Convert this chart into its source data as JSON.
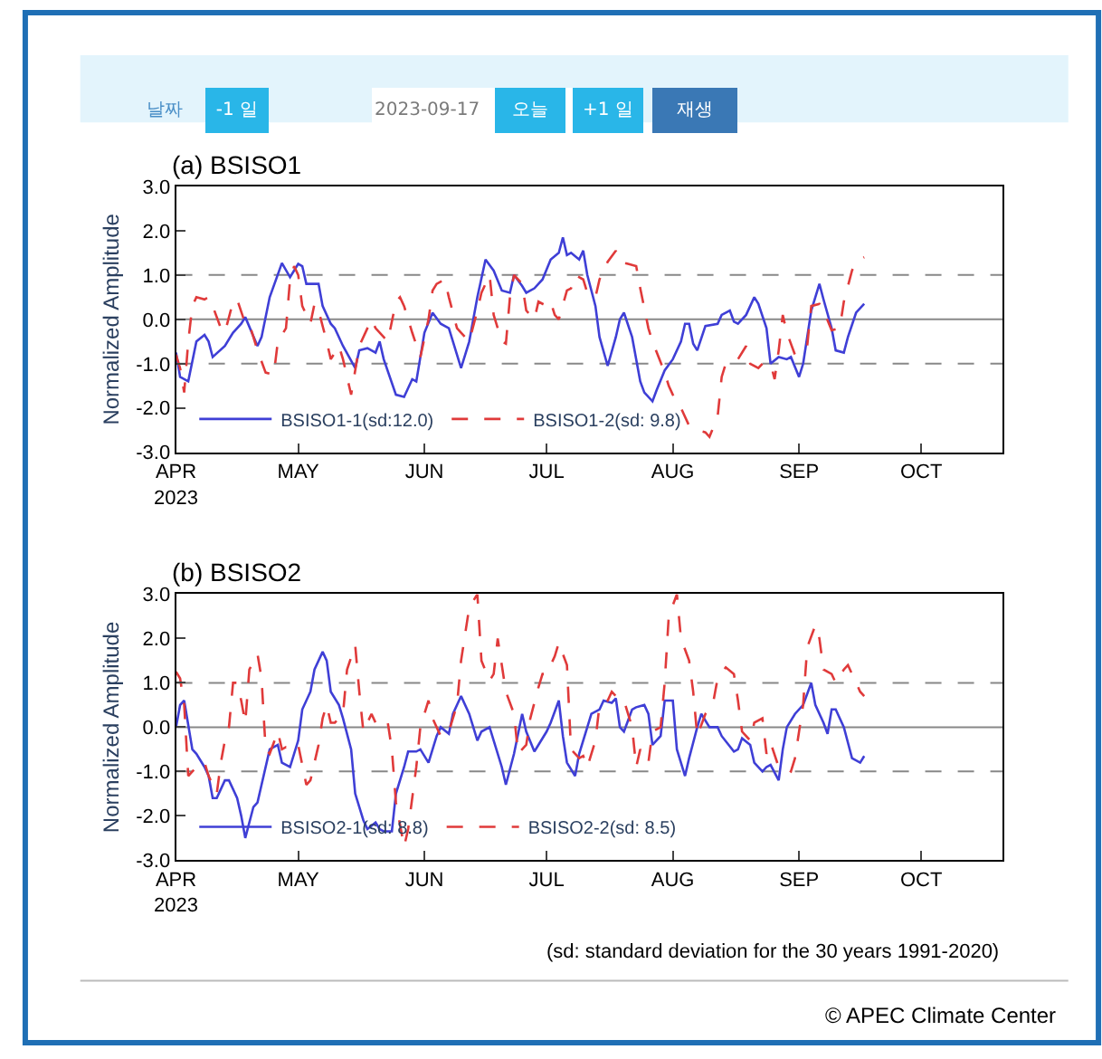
{
  "chart_data": [
    {
      "type": "other",
      "annotations": [
        "날짜",
        "-1 일",
        "2023-09-17",
        "오늘",
        "+1 일",
        "재생"
      ]
    },
    {
      "type": "line",
      "title": "(a) BSISO1",
      "ylabel": "Normalized Amplitude",
      "legend": "bottom left",
      "xlim": [
        "2023-04-01",
        "2023-10-21"
      ],
      "xticks": [
        {
          "value": "2023-04-01",
          "label": "APR\n2023"
        },
        {
          "value": "2023-05-01",
          "label": "MAY"
        },
        {
          "value": "2023-06-01",
          "label": "JUN"
        },
        {
          "value": "2023-07-01",
          "label": "JUL"
        },
        {
          "value": "2023-08-01",
          "label": "AUG"
        },
        {
          "value": "2023-09-01",
          "label": "SEP"
        },
        {
          "value": "2023-10-01",
          "label": "OCT"
        }
      ],
      "ylim": [
        -3,
        3
      ],
      "yticks": [
        {
          "value": -3,
          "label": "-3.0"
        },
        {
          "value": -2,
          "label": "-2.0"
        },
        {
          "value": -1,
          "label": "-1.0"
        },
        {
          "value": 0,
          "label": "0.0"
        },
        {
          "value": 1,
          "label": "1.0"
        },
        {
          "value": 2,
          "label": "2.0"
        },
        {
          "value": 3,
          "label": "3.0"
        }
      ],
      "ref_lines": [
        {
          "axis": "y",
          "value": 1,
          "color": "#888888",
          "line_style": "dashed"
        },
        {
          "axis": "y",
          "value": 0,
          "color": "#888888",
          "line_style": "solid"
        },
        {
          "axis": "y",
          "value": -1,
          "color": "#888888",
          "line_style": "dashed"
        }
      ],
      "series": [
        {
          "name": "BSISO1-1(sd:12.0)",
          "color": "#3f3fd6",
          "line_style": "solid",
          "x": [
            "2023-04-01",
            "2023-04-02",
            "2023-04-04",
            "2023-04-06",
            "2023-04-08",
            "2023-04-09",
            "2023-04-10",
            "2023-04-13",
            "2023-04-15",
            "2023-04-17",
            "2023-04-18",
            "2023-04-21",
            "2023-04-22",
            "2023-04-24",
            "2023-04-27",
            "2023-04-29",
            "2023-05-01",
            "2023-05-02",
            "2023-05-03",
            "2023-05-05",
            "2023-05-06",
            "2023-05-07",
            "2023-05-09",
            "2023-05-10",
            "2023-05-12",
            "2023-05-15",
            "2023-05-16",
            "2023-05-18",
            "2023-05-20",
            "2023-05-21",
            "2023-05-22",
            "2023-05-25",
            "2023-05-27",
            "2023-05-29",
            "2023-05-30",
            "2023-06-01",
            "2023-06-03",
            "2023-06-05",
            "2023-06-07",
            "2023-06-10",
            "2023-06-12",
            "2023-06-14",
            "2023-06-16",
            "2023-06-18",
            "2023-06-20",
            "2023-06-22",
            "2023-06-23",
            "2023-06-25",
            "2023-06-26",
            "2023-06-28",
            "2023-06-30",
            "2023-07-02",
            "2023-07-04",
            "2023-07-05",
            "2023-07-06",
            "2023-07-07",
            "2023-07-09",
            "2023-07-10",
            "2023-07-11",
            "2023-07-13",
            "2023-07-14",
            "2023-07-16",
            "2023-07-18",
            "2023-07-19",
            "2023-07-20",
            "2023-07-22",
            "2023-07-24",
            "2023-07-25",
            "2023-07-27",
            "2023-07-28",
            "2023-07-30",
            "2023-08-01",
            "2023-08-03",
            "2023-08-04",
            "2023-08-05",
            "2023-08-06",
            "2023-08-07",
            "2023-08-09",
            "2023-08-12",
            "2023-08-13",
            "2023-08-15",
            "2023-08-16",
            "2023-08-17",
            "2023-08-19",
            "2023-08-21",
            "2023-08-22",
            "2023-08-24",
            "2023-08-25",
            "2023-08-27",
            "2023-08-29",
            "2023-08-30",
            "2023-09-01",
            "2023-09-02",
            "2023-09-04",
            "2023-09-06",
            "2023-09-07",
            "2023-09-09",
            "2023-09-10",
            "2023-09-12",
            "2023-09-13",
            "2023-09-15",
            "2023-09-17"
          ],
          "values": [
            -0.75,
            -1.3,
            -1.4,
            -0.5,
            -0.35,
            -0.5,
            -0.85,
            -0.6,
            -0.3,
            -0.1,
            0.05,
            -0.6,
            -0.4,
            0.5,
            1.27,
            0.95,
            1.25,
            1.2,
            0.8,
            0.8,
            0.8,
            0.3,
            -0.1,
            -0.2,
            -0.6,
            -1.1,
            -0.7,
            -0.65,
            -0.75,
            -0.5,
            -0.9,
            -1.7,
            -1.75,
            -1.35,
            -1.4,
            -0.3,
            0.15,
            -0.1,
            -0.2,
            -1.1,
            -0.5,
            0.5,
            1.35,
            1.1,
            0.65,
            0.6,
            1.0,
            0.75,
            0.6,
            0.7,
            0.9,
            1.35,
            1.5,
            1.85,
            1.45,
            1.5,
            1.35,
            1.55,
            1.0,
            0.3,
            -0.4,
            -1.05,
            -0.4,
            0.0,
            0.15,
            -0.4,
            -1.4,
            -1.65,
            -1.85,
            -1.6,
            -1.15,
            -0.9,
            -0.5,
            -0.1,
            -0.1,
            -0.55,
            -0.7,
            -0.15,
            -0.1,
            0.1,
            0.2,
            -0.05,
            -0.1,
            0.1,
            0.5,
            0.35,
            -0.2,
            -1.0,
            -0.85,
            -0.9,
            -0.85,
            -1.3,
            -1.0,
            0.2,
            0.8,
            0.45,
            -0.2,
            -0.7,
            -0.75,
            -0.4,
            0.15,
            0.35
          ]
        },
        {
          "name": "BSISO1-2(sd: 9.8)",
          "color": "#e03a3a",
          "line_style": "dashed",
          "x": [
            "2023-04-01",
            "2023-04-02",
            "2023-04-03",
            "2023-04-04",
            "2023-04-05",
            "2023-04-06",
            "2023-04-08",
            "2023-04-09",
            "2023-04-10",
            "2023-04-12",
            "2023-04-13",
            "2023-04-15",
            "2023-04-16",
            "2023-04-18",
            "2023-04-19",
            "2023-04-21",
            "2023-04-23",
            "2023-04-25",
            "2023-04-26",
            "2023-04-28",
            "2023-04-29",
            "2023-04-30",
            "2023-05-01",
            "2023-05-02",
            "2023-05-04",
            "2023-05-05",
            "2023-05-06",
            "2023-05-08",
            "2023-05-09",
            "2023-05-11",
            "2023-05-12",
            "2023-05-14",
            "2023-05-16",
            "2023-05-18",
            "2023-05-19",
            "2023-05-20",
            "2023-05-22",
            "2023-05-23",
            "2023-05-25",
            "2023-05-26",
            "2023-05-27",
            "2023-05-29",
            "2023-05-31",
            "2023-06-02",
            "2023-06-03",
            "2023-06-04",
            "2023-06-06",
            "2023-06-07",
            "2023-06-09",
            "2023-06-10",
            "2023-06-12",
            "2023-06-14",
            "2023-06-15",
            "2023-06-17",
            "2023-06-18",
            "2023-06-20",
            "2023-06-21",
            "2023-06-22",
            "2023-06-23",
            "2023-06-25",
            "2023-06-26",
            "2023-06-28",
            "2023-06-29",
            "2023-07-01",
            "2023-07-02",
            "2023-07-03",
            "2023-07-04",
            "2023-07-06",
            "2023-07-07",
            "2023-07-08",
            "2023-07-10",
            "2023-07-11",
            "2023-07-13",
            "2023-07-14",
            "2023-07-16",
            "2023-07-18",
            "2023-07-19",
            "2023-07-21",
            "2023-07-23",
            "2023-07-24",
            "2023-07-26",
            "2023-07-27",
            "2023-07-30",
            "2023-07-31",
            "2023-08-01",
            "2023-08-03",
            "2023-08-05",
            "2023-08-07",
            "2023-08-09",
            "2023-08-10",
            "2023-08-12",
            "2023-08-13",
            "2023-08-14",
            "2023-08-16",
            "2023-08-17",
            "2023-08-19",
            "2023-08-20",
            "2023-08-22",
            "2023-08-23",
            "2023-08-25",
            "2023-08-26",
            "2023-08-27",
            "2023-08-28",
            "2023-08-29",
            "2023-08-31",
            "2023-09-01",
            "2023-09-03",
            "2023-09-04",
            "2023-09-06",
            "2023-09-07",
            "2023-09-09",
            "2023-09-11",
            "2023-09-12",
            "2023-09-14",
            "2023-09-15",
            "2023-09-17"
          ],
          "values": [
            -0.8,
            -1.1,
            -1.65,
            -0.5,
            0.3,
            0.5,
            0.45,
            0.5,
            0.3,
            -0.2,
            -0.3,
            0.4,
            0.45,
            -0.1,
            -0.1,
            -0.7,
            -1.2,
            -1.25,
            -0.5,
            -0.2,
            0.9,
            1.2,
            1.0,
            0.3,
            -0.1,
            0.35,
            0.2,
            -0.5,
            -0.9,
            -0.6,
            -0.9,
            -1.7,
            -0.6,
            -0.2,
            0.0,
            -0.2,
            -0.4,
            -0.5,
            0.4,
            0.5,
            0.3,
            -0.3,
            -0.85,
            0.0,
            0.65,
            0.8,
            0.9,
            0.5,
            -0.2,
            -0.3,
            -0.5,
            0.2,
            0.6,
            1.0,
            0.1,
            -0.5,
            -0.55,
            0.5,
            1.0,
            0.8,
            0.2,
            0.0,
            0.4,
            0.3,
            0.4,
            0.1,
            0.0,
            0.65,
            0.7,
            1.0,
            0.9,
            0.6,
            0.5,
            0.9,
            1.3,
            1.55,
            1.3,
            1.25,
            1.2,
            0.7,
            -0.2,
            -0.5,
            -1.2,
            -1.5,
            -1.7,
            -2.0,
            -2.4,
            -2.5,
            -2.55,
            -2.65,
            -2.2,
            -1.3,
            -1.0,
            -0.95,
            -0.9,
            -0.6,
            -1.0,
            -1.1,
            -1.0,
            -1.0,
            -1.35,
            -0.7,
            0.1,
            -0.3,
            -0.8,
            -0.7,
            -0.6,
            0.3,
            0.35,
            0.2,
            -0.25,
            -0.2,
            0.4,
            1.1,
            1.3,
            1.4
          ]
        }
      ]
    },
    {
      "type": "line",
      "title": "(b) BSISO2",
      "ylabel": "Normalized Amplitude",
      "legend": "bottom left",
      "xlim": [
        "2023-04-01",
        "2023-10-21"
      ],
      "xticks": [
        {
          "value": "2023-04-01",
          "label": "APR\n2023"
        },
        {
          "value": "2023-05-01",
          "label": "MAY"
        },
        {
          "value": "2023-06-01",
          "label": "JUN"
        },
        {
          "value": "2023-07-01",
          "label": "JUL"
        },
        {
          "value": "2023-08-01",
          "label": "AUG"
        },
        {
          "value": "2023-09-01",
          "label": "SEP"
        },
        {
          "value": "2023-10-01",
          "label": "OCT"
        }
      ],
      "ylim": [
        -3,
        3
      ],
      "yticks": [
        {
          "value": -3,
          "label": "-3.0"
        },
        {
          "value": -2,
          "label": "-2.0"
        },
        {
          "value": -1,
          "label": "-1.0"
        },
        {
          "value": 0,
          "label": "0.0"
        },
        {
          "value": 1,
          "label": "1.0"
        },
        {
          "value": 2,
          "label": "2.0"
        },
        {
          "value": 3,
          "label": "3.0"
        }
      ],
      "ref_lines": [
        {
          "axis": "y",
          "value": 1,
          "color": "#888888",
          "line_style": "dashed"
        },
        {
          "axis": "y",
          "value": 0,
          "color": "#888888",
          "line_style": "solid"
        },
        {
          "axis": "y",
          "value": -1,
          "color": "#888888",
          "line_style": "dashed"
        }
      ],
      "annotations": [
        "(sd: standard deviation for the 30 years 1991-2020)",
        "© APEC Climate Center"
      ],
      "series": [
        {
          "name": "BSISO2-1(sd: 8.8)",
          "color": "#3f3fd6",
          "line_style": "solid",
          "x": [
            "2023-04-01",
            "2023-04-02",
            "2023-04-03",
            "2023-04-05",
            "2023-04-06",
            "2023-04-08",
            "2023-04-09",
            "2023-04-10",
            "2023-04-11",
            "2023-04-13",
            "2023-04-14",
            "2023-04-16",
            "2023-04-17",
            "2023-04-18",
            "2023-04-20",
            "2023-04-21",
            "2023-04-22",
            "2023-04-24",
            "2023-04-26",
            "2023-04-27",
            "2023-04-29",
            "2023-05-01",
            "2023-05-02",
            "2023-05-04",
            "2023-05-05",
            "2023-05-07",
            "2023-05-08",
            "2023-05-09",
            "2023-05-11",
            "2023-05-12",
            "2023-05-14",
            "2023-05-15",
            "2023-05-17",
            "2023-05-18",
            "2023-05-20",
            "2023-05-21",
            "2023-05-22",
            "2023-05-24",
            "2023-05-25",
            "2023-05-27",
            "2023-05-28",
            "2023-05-30",
            "2023-05-31",
            "2023-06-02",
            "2023-06-04",
            "2023-06-05",
            "2023-06-07",
            "2023-06-08",
            "2023-06-10",
            "2023-06-12",
            "2023-06-14",
            "2023-06-15",
            "2023-06-17",
            "2023-06-18",
            "2023-06-20",
            "2023-06-21",
            "2023-06-23",
            "2023-06-25",
            "2023-06-26",
            "2023-06-28",
            "2023-06-29",
            "2023-07-01",
            "2023-07-02",
            "2023-07-04",
            "2023-07-05",
            "2023-07-06",
            "2023-07-08",
            "2023-07-09",
            "2023-07-11",
            "2023-07-12",
            "2023-07-14",
            "2023-07-15",
            "2023-07-17",
            "2023-07-18",
            "2023-07-19",
            "2023-07-20",
            "2023-07-22",
            "2023-07-23",
            "2023-07-25",
            "2023-07-26",
            "2023-07-27",
            "2023-07-29",
            "2023-07-30",
            "2023-08-01",
            "2023-08-02",
            "2023-08-04",
            "2023-08-05",
            "2023-08-07",
            "2023-08-08",
            "2023-08-10",
            "2023-08-12",
            "2023-08-13",
            "2023-08-16",
            "2023-08-17",
            "2023-08-18",
            "2023-08-20",
            "2023-08-21",
            "2023-08-23",
            "2023-08-24",
            "2023-08-25",
            "2023-08-27",
            "2023-08-28",
            "2023-08-29",
            "2023-08-31",
            "2023-09-02",
            "2023-09-04",
            "2023-09-05",
            "2023-09-07",
            "2023-09-08",
            "2023-09-09",
            "2023-09-10",
            "2023-09-12",
            "2023-09-13",
            "2023-09-14",
            "2023-09-16",
            "2023-09-17"
          ],
          "values": [
            0.0,
            0.5,
            0.6,
            -0.5,
            -0.6,
            -0.9,
            -1.1,
            -1.6,
            -1.6,
            -1.2,
            -1.2,
            -1.6,
            -2.0,
            -2.5,
            -1.8,
            -1.7,
            -1.3,
            -0.5,
            -0.4,
            -0.8,
            -0.9,
            -0.3,
            0.4,
            0.8,
            1.3,
            1.7,
            1.5,
            0.8,
            0.5,
            0.2,
            -0.5,
            -1.5,
            -2.1,
            -2.3,
            -2.15,
            -2.3,
            -2.35,
            -2.35,
            -1.5,
            -0.9,
            -0.55,
            -0.55,
            -0.5,
            -0.8,
            -0.2,
            0.0,
            -0.15,
            0.3,
            0.7,
            0.3,
            -0.3,
            -0.1,
            0.0,
            -0.3,
            -0.9,
            -1.3,
            -0.6,
            0.3,
            -0.1,
            -0.55,
            -0.4,
            -0.1,
            0.1,
            0.6,
            -0.2,
            -0.8,
            -1.1,
            -0.6,
            0.0,
            0.3,
            0.4,
            0.6,
            0.55,
            0.65,
            0.0,
            -0.1,
            0.4,
            0.45,
            0.5,
            0.3,
            -0.4,
            -0.2,
            0.6,
            0.6,
            -0.5,
            -1.1,
            -0.7,
            0.0,
            0.3,
            0.0,
            0.0,
            -0.2,
            -0.55,
            -0.5,
            -0.25,
            -0.4,
            -0.8,
            -1.0,
            -0.9,
            -0.85,
            -1.2,
            -0.5,
            0.0,
            0.3,
            0.5,
            1.0,
            0.5,
            0.1,
            -0.15,
            0.4,
            0.4,
            0.0,
            -0.35,
            -0.7,
            -0.8,
            -0.65
          ]
        },
        {
          "name": "BSISO2-2(sd: 8.5)",
          "color": "#e03a3a",
          "line_style": "dashed",
          "x": [
            "2023-04-01",
            "2023-04-02",
            "2023-04-03",
            "2023-04-04",
            "2023-04-05",
            "2023-04-07",
            "2023-04-08",
            "2023-04-09",
            "2023-04-11",
            "2023-04-12",
            "2023-04-13",
            "2023-04-14",
            "2023-04-15",
            "2023-04-16",
            "2023-04-17",
            "2023-04-18",
            "2023-04-19",
            "2023-04-21",
            "2023-04-22",
            "2023-04-23",
            "2023-04-24",
            "2023-04-26",
            "2023-04-27",
            "2023-04-28",
            "2023-04-30",
            "2023-05-01",
            "2023-05-03",
            "2023-05-04",
            "2023-05-06",
            "2023-05-07",
            "2023-05-08",
            "2023-05-09",
            "2023-05-10",
            "2023-05-12",
            "2023-05-13",
            "2023-05-15",
            "2023-05-16",
            "2023-05-17",
            "2023-05-19",
            "2023-05-20",
            "2023-05-21",
            "2023-05-23",
            "2023-05-24",
            "2023-05-25",
            "2023-05-27",
            "2023-05-28",
            "2023-05-30",
            "2023-05-31",
            "2023-06-02",
            "2023-06-03",
            "2023-06-05",
            "2023-06-06",
            "2023-06-07",
            "2023-06-09",
            "2023-06-10",
            "2023-06-12",
            "2023-06-14",
            "2023-06-15",
            "2023-06-17",
            "2023-06-18",
            "2023-06-19",
            "2023-06-20",
            "2023-06-21",
            "2023-06-23",
            "2023-06-24",
            "2023-06-26",
            "2023-06-27",
            "2023-06-29",
            "2023-06-30",
            "2023-07-01",
            "2023-07-03",
            "2023-07-04",
            "2023-07-06",
            "2023-07-07",
            "2023-07-09",
            "2023-07-10",
            "2023-07-11",
            "2023-07-13",
            "2023-07-14",
            "2023-07-16",
            "2023-07-17",
            "2023-07-19",
            "2023-07-20",
            "2023-07-22",
            "2023-07-23",
            "2023-07-24",
            "2023-07-26",
            "2023-07-27",
            "2023-07-29",
            "2023-07-30",
            "2023-07-31",
            "2023-08-02",
            "2023-08-03",
            "2023-08-05",
            "2023-08-06",
            "2023-08-07",
            "2023-08-09",
            "2023-08-11",
            "2023-08-12",
            "2023-08-14",
            "2023-08-16",
            "2023-08-17",
            "2023-08-18",
            "2023-08-20",
            "2023-08-21",
            "2023-08-23",
            "2023-08-24",
            "2023-08-25",
            "2023-08-27",
            "2023-08-28",
            "2023-08-30",
            "2023-08-31",
            "2023-09-02",
            "2023-09-03",
            "2023-09-05",
            "2023-09-06",
            "2023-09-07",
            "2023-09-09",
            "2023-09-10",
            "2023-09-12",
            "2023-09-13",
            "2023-09-14",
            "2023-09-16",
            "2023-09-17"
          ],
          "values": [
            1.25,
            1.1,
            0.5,
            -1.1,
            -1.0,
            -0.8,
            -0.8,
            -1.1,
            -1.5,
            -0.8,
            -0.3,
            0.0,
            1.0,
            1.0,
            0.6,
            0.1,
            1.3,
            1.65,
            1.1,
            -0.5,
            -0.6,
            -0.1,
            -0.5,
            -0.45,
            -0.5,
            -0.4,
            -1.3,
            -1.2,
            -0.4,
            0.2,
            0.5,
            0.1,
            0.1,
            0.3,
            1.3,
            1.85,
            0.8,
            -0.1,
            0.3,
            0.1,
            0.2,
            0.1,
            -0.5,
            -1.7,
            -2.7,
            -2.3,
            -0.9,
            0.0,
            0.6,
            0.2,
            -0.2,
            -0.1,
            -0.1,
            0.5,
            1.5,
            2.7,
            3.0,
            1.5,
            1.05,
            1.2,
            2.0,
            1.4,
            0.8,
            0.3,
            -0.6,
            -0.4,
            0.2,
            0.9,
            1.2,
            1.2,
            1.6,
            1.9,
            1.4,
            -0.5,
            -0.7,
            -0.65,
            -0.9,
            -0.3,
            0.5,
            0.6,
            0.8,
            0.6,
            0.6,
            0.0,
            -0.9,
            -0.5,
            -0.8,
            -0.1,
            0.0,
            1.0,
            2.5,
            3.0,
            2.0,
            1.5,
            0.8,
            -0.2,
            0.3,
            0.6,
            1.1,
            1.35,
            1.2,
            0.6,
            -0.1,
            -0.3,
            0.1,
            0.2,
            -0.6,
            -0.35,
            -0.9,
            -0.9,
            -1.0,
            -0.7,
            0.5,
            1.8,
            2.3,
            2.0,
            1.3,
            1.2,
            1.0,
            1.3,
            1.4,
            1.2,
            0.8,
            0.7
          ]
        }
      ]
    }
  ]
}
